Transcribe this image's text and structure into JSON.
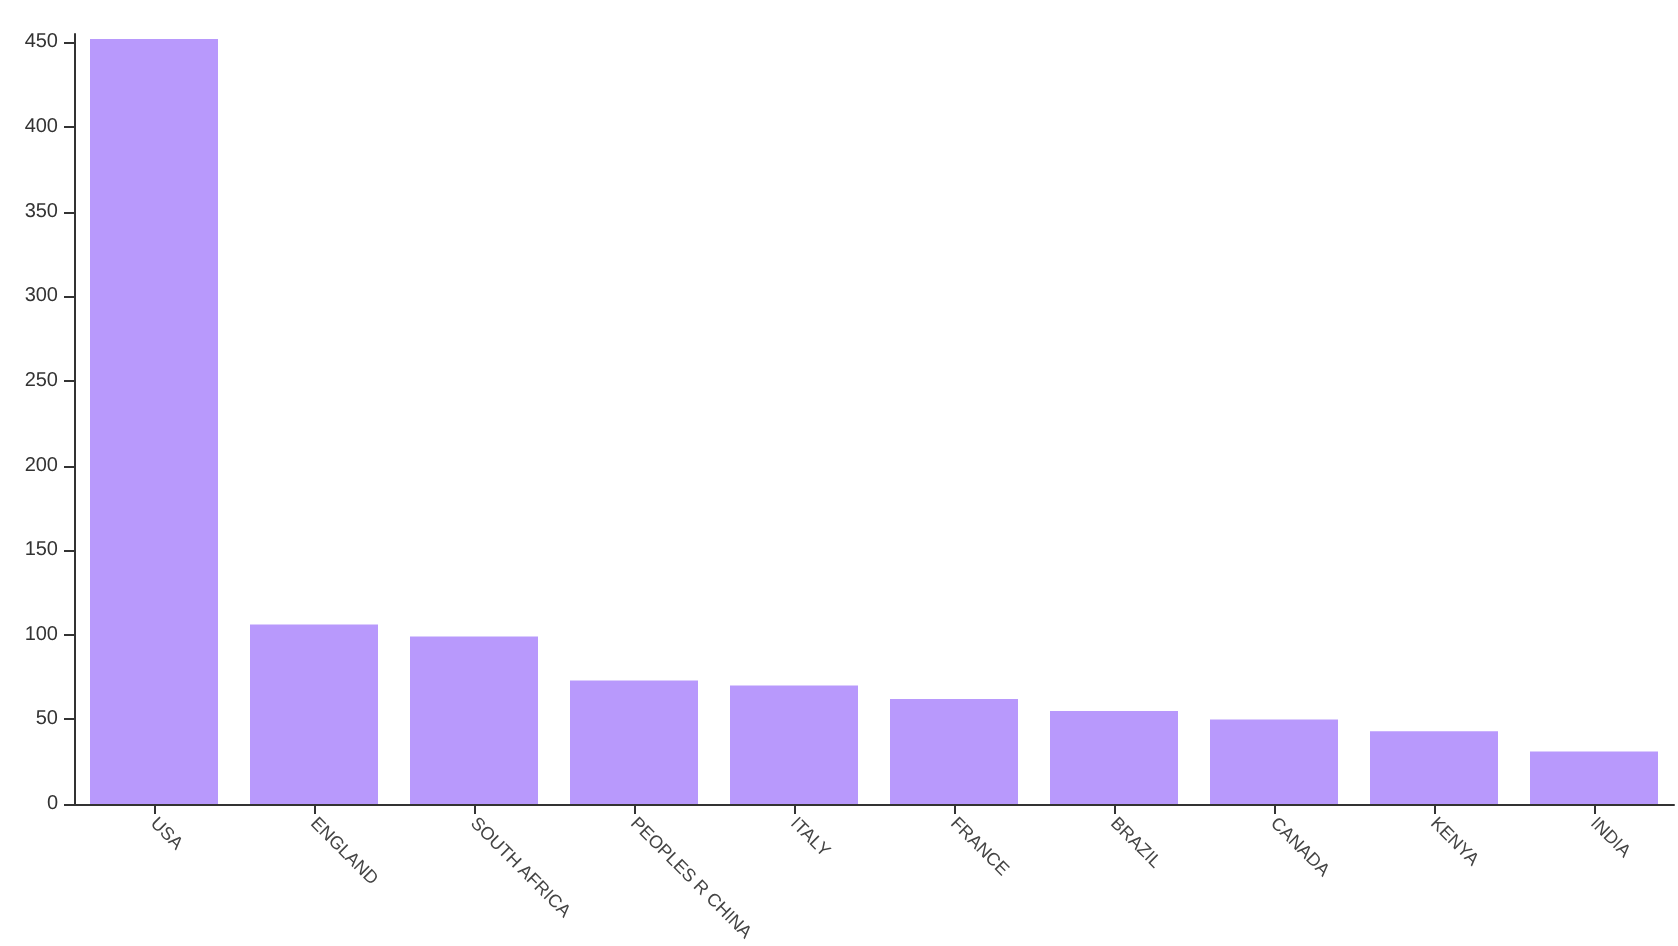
{
  "chart_data": {
    "type": "bar",
    "categories": [
      "USA",
      "ENGLAND",
      "SOUTH AFRICA",
      "PEOPLES R CHINA",
      "ITALY",
      "FRANCE",
      "BRAZIL",
      "CANADA",
      "KENYA",
      "INDIA"
    ],
    "values": [
      452,
      106,
      99,
      73,
      70,
      62,
      55,
      50,
      43,
      31
    ],
    "color": "#b899fc",
    "ylim": [
      0,
      455
    ],
    "yticks": [
      0,
      50,
      100,
      150,
      200,
      250,
      300,
      350,
      400,
      450
    ],
    "grid": false
  }
}
